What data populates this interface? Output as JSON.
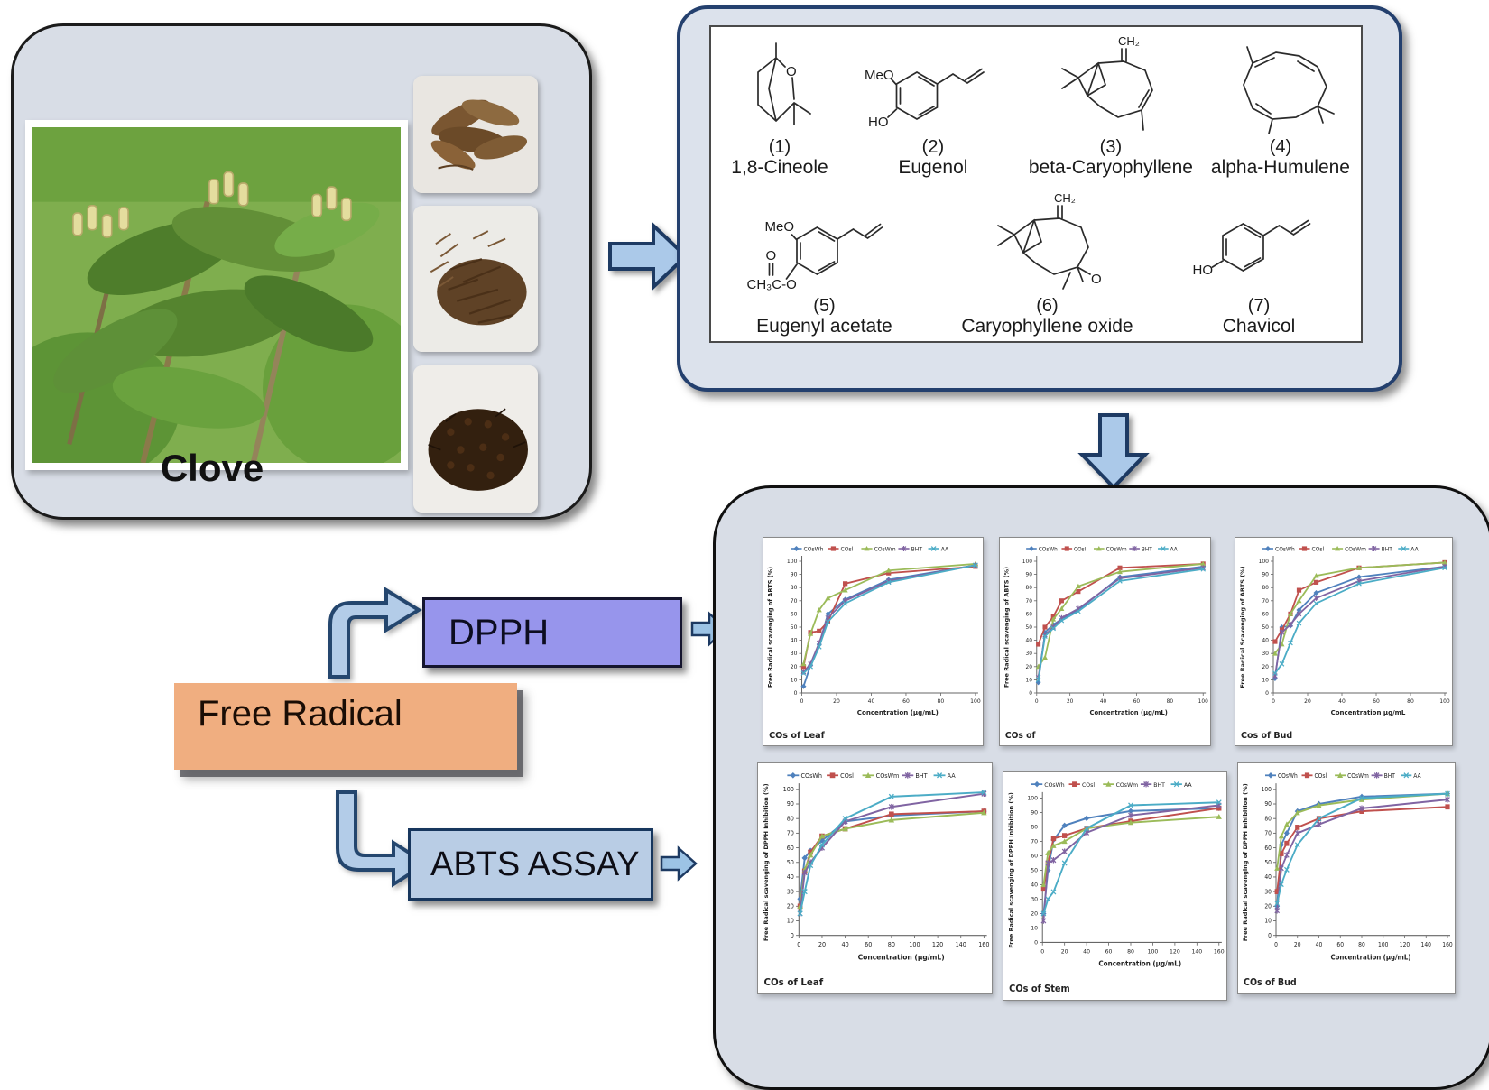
{
  "clove_panel": {
    "title": "Clove",
    "photos": [
      "clove-plant-photo",
      "dried-leaves-photo",
      "dried-stems-photo",
      "dried-buds-photo"
    ]
  },
  "compounds_panel": {
    "compounds": [
      {
        "num": "(1)",
        "name": "1,8-Cineole",
        "atoms": [
          "O"
        ]
      },
      {
        "num": "(2)",
        "name": "Eugenol",
        "atoms": [
          "MeO",
          "HO"
        ]
      },
      {
        "num": "(3)",
        "name": "beta-Caryophyllene",
        "atoms": [
          "CH₂"
        ]
      },
      {
        "num": "(4)",
        "name": "alpha-Humulene",
        "atoms": []
      },
      {
        "num": "(5)",
        "name": "Eugenyl acetate",
        "atoms": [
          "MeO",
          "O",
          "CH₃C-O"
        ]
      },
      {
        "num": "(6)",
        "name": "Caryophyllene oxide",
        "atoms": [
          "CH₂",
          "O"
        ]
      },
      {
        "num": "(7)",
        "name": "Chavicol",
        "atoms": [
          "HO"
        ]
      }
    ]
  },
  "flow": {
    "dpph_label": "DPPH",
    "free_radical_label": "Free Radical",
    "abts_label": "ABTS ASSAY"
  },
  "colors": {
    "panel_fill": "#d8dde6",
    "chem_border": "#24406e",
    "dpph_fill": "#9795ec",
    "free_radical_fill": "#f0ae80",
    "abts_fill": "#b9cde5",
    "block_arrow_fill": "#abc9e9",
    "block_arrow_stroke": "#24466e",
    "series_blue": "#4F81BD",
    "series_red": "#C0504D",
    "series_green": "#9BBB59",
    "series_purple": "#8064A2",
    "series_cyan": "#4BACC6"
  },
  "chart_data": [
    {
      "type": "line",
      "caption": "COs of Leaf",
      "xlabel": "Concentration (µg/mL)",
      "ylabel": "Free Radical scavenging of ABTS (%)",
      "xlim": [
        0,
        100
      ],
      "ylim": [
        0,
        100
      ],
      "xticks": [
        0,
        20,
        40,
        60,
        80,
        100
      ],
      "yticks": [
        0,
        10,
        20,
        30,
        40,
        50,
        60,
        70,
        80,
        90,
        100
      ],
      "x": [
        1,
        5,
        10,
        15,
        25,
        50,
        100
      ],
      "series": [
        {
          "name": "COsWh",
          "marker": "diamond",
          "color": "#4F81BD",
          "values": [
            5,
            21,
            37,
            60,
            71,
            86,
            97
          ]
        },
        {
          "name": "COsl",
          "marker": "square",
          "color": "#C0504D",
          "values": [
            20,
            46,
            47,
            54,
            83,
            91,
            96
          ]
        },
        {
          "name": "COsWm",
          "marker": "triangle",
          "color": "#9BBB59",
          "values": [
            22,
            45,
            63,
            72,
            78,
            93,
            98
          ]
        },
        {
          "name": "BHT",
          "marker": "star",
          "color": "#8064A2",
          "values": [
            16,
            22,
            38,
            57,
            70,
            85,
            97
          ]
        },
        {
          "name": "AA",
          "marker": "x",
          "color": "#4BACC6",
          "values": [
            15,
            20,
            35,
            54,
            68,
            84,
            97
          ]
        }
      ]
    },
    {
      "type": "line",
      "caption": "COs of",
      "xlabel": "Concentration (µg/mL)",
      "ylabel": "Free Radical scavenging of ABTS (%)",
      "xlim": [
        0,
        100
      ],
      "ylim": [
        0,
        100
      ],
      "xticks": [
        0,
        20,
        40,
        60,
        80,
        100
      ],
      "yticks": [
        0,
        10,
        20,
        30,
        40,
        50,
        60,
        70,
        80,
        90,
        100
      ],
      "x": [
        1,
        5,
        10,
        15,
        25,
        50,
        100
      ],
      "series": [
        {
          "name": "COsWh",
          "marker": "diamond",
          "color": "#4F81BD",
          "values": [
            8,
            46,
            52,
            56,
            63,
            88,
            96
          ]
        },
        {
          "name": "COsl",
          "marker": "square",
          "color": "#C0504D",
          "values": [
            37,
            50,
            58,
            70,
            77,
            95,
            98
          ]
        },
        {
          "name": "COsWm",
          "marker": "triangle",
          "color": "#9BBB59",
          "values": [
            20,
            27,
            56,
            64,
            81,
            92,
            98
          ]
        },
        {
          "name": "BHT",
          "marker": "star",
          "color": "#8064A2",
          "values": [
            12,
            44,
            50,
            57,
            64,
            87,
            95
          ]
        },
        {
          "name": "AA",
          "marker": "x",
          "color": "#4BACC6",
          "values": [
            10,
            43,
            49,
            55,
            62,
            85,
            94
          ]
        }
      ]
    },
    {
      "type": "line",
      "caption": "Cos of Bud",
      "xlabel": "Concentration µg/mL",
      "ylabel": "Free Radical Scavenging of ABTS (%)",
      "xlim": [
        0,
        100
      ],
      "ylim": [
        0,
        100
      ],
      "xticks": [
        0,
        20,
        40,
        60,
        80,
        100
      ],
      "yticks": [
        0,
        10,
        20,
        30,
        40,
        50,
        60,
        70,
        80,
        90,
        100
      ],
      "x": [
        1,
        5,
        10,
        15,
        25,
        50,
        100
      ],
      "series": [
        {
          "name": "COsWh",
          "marker": "diamond",
          "color": "#4F81BD",
          "values": [
            11,
            50,
            51,
            63,
            76,
            88,
            96
          ]
        },
        {
          "name": "COsl",
          "marker": "square",
          "color": "#C0504D",
          "values": [
            39,
            48,
            60,
            78,
            84,
            95,
            99
          ]
        },
        {
          "name": "COsWm",
          "marker": "triangle",
          "color": "#9BBB59",
          "values": [
            30,
            37,
            60,
            70,
            89,
            95,
            99
          ]
        },
        {
          "name": "BHT",
          "marker": "star",
          "color": "#8064A2",
          "values": [
            13,
            46,
            52,
            60,
            72,
            85,
            96
          ]
        },
        {
          "name": "AA",
          "marker": "x",
          "color": "#4BACC6",
          "values": [
            15,
            22,
            38,
            53,
            68,
            83,
            95
          ]
        }
      ]
    },
    {
      "type": "line",
      "caption": "COs of Leaf",
      "xlabel": "Concentration (µg/mL)",
      "ylabel": "Free Radical scavenging of DPPH Inhibition (%)",
      "xlim": [
        0,
        160
      ],
      "ylim": [
        0,
        100
      ],
      "xticks": [
        0,
        20,
        40,
        60,
        80,
        100,
        120,
        140,
        160
      ],
      "yticks": [
        0,
        10,
        20,
        30,
        40,
        50,
        60,
        70,
        80,
        90,
        100
      ],
      "x": [
        1,
        5,
        10,
        20,
        40,
        80,
        160
      ],
      "series": [
        {
          "name": "COsWh",
          "marker": "diamond",
          "color": "#4F81BD",
          "values": [
            25,
            53,
            58,
            65,
            78,
            82,
            85
          ]
        },
        {
          "name": "COsl",
          "marker": "square",
          "color": "#C0504D",
          "values": [
            20,
            44,
            57,
            68,
            73,
            83,
            85
          ]
        },
        {
          "name": "COsWm",
          "marker": "triangle",
          "color": "#9BBB59",
          "values": [
            20,
            45,
            55,
            68,
            73,
            79,
            84
          ]
        },
        {
          "name": "BHT",
          "marker": "star",
          "color": "#8064A2",
          "values": [
            15,
            43,
            50,
            60,
            78,
            88,
            97
          ]
        },
        {
          "name": "AA",
          "marker": "x",
          "color": "#4BACC6",
          "values": [
            15,
            30,
            48,
            62,
            80,
            95,
            98
          ]
        }
      ]
    },
    {
      "type": "line",
      "caption": "COs of Stem",
      "xlabel": "Concentration (µg/mL)",
      "ylabel": "Free Radical scavenging of DPPH Inhibition (%)",
      "xlim": [
        0,
        160
      ],
      "ylim": [
        0,
        100
      ],
      "xticks": [
        0,
        20,
        40,
        60,
        80,
        100,
        120,
        140,
        160
      ],
      "yticks": [
        0,
        10,
        20,
        30,
        40,
        50,
        60,
        70,
        80,
        90,
        100
      ],
      "x": [
        1,
        5,
        10,
        20,
        40,
        80,
        160
      ],
      "series": [
        {
          "name": "COsWh",
          "marker": "diamond",
          "color": "#4F81BD",
          "values": [
            20,
            50,
            71,
            81,
            86,
            91,
            93
          ]
        },
        {
          "name": "COsl",
          "marker": "square",
          "color": "#C0504D",
          "values": [
            37,
            55,
            72,
            74,
            79,
            84,
            93
          ]
        },
        {
          "name": "COsWm",
          "marker": "triangle",
          "color": "#9BBB59",
          "values": [
            40,
            62,
            67,
            70,
            79,
            83,
            87
          ]
        },
        {
          "name": "BHT",
          "marker": "star",
          "color": "#8064A2",
          "values": [
            15,
            55,
            57,
            63,
            76,
            88,
            95
          ]
        },
        {
          "name": "AA",
          "marker": "x",
          "color": "#4BACC6",
          "values": [
            20,
            30,
            35,
            55,
            79,
            95,
            97
          ]
        }
      ]
    },
    {
      "type": "line",
      "caption": "COs of Bud",
      "xlabel": "Concentration (µg/mL)",
      "ylabel": "Free Radical scavenging of DPPH Inhibition (%)",
      "xlim": [
        0,
        160
      ],
      "ylim": [
        0,
        100
      ],
      "xticks": [
        0,
        20,
        40,
        60,
        80,
        100,
        120,
        140,
        160
      ],
      "yticks": [
        0,
        10,
        20,
        30,
        40,
        50,
        60,
        70,
        80,
        90,
        100
      ],
      "x": [
        1,
        5,
        10,
        20,
        40,
        80,
        160
      ],
      "series": [
        {
          "name": "COsWh",
          "marker": "diamond",
          "color": "#4F81BD",
          "values": [
            20,
            62,
            70,
            85,
            90,
            95,
            97
          ]
        },
        {
          "name": "COsl",
          "marker": "square",
          "color": "#C0504D",
          "values": [
            30,
            56,
            63,
            74,
            80,
            85,
            88
          ]
        },
        {
          "name": "COsWm",
          "marker": "triangle",
          "color": "#9BBB59",
          "values": [
            46,
            68,
            76,
            84,
            89,
            93,
            97
          ]
        },
        {
          "name": "BHT",
          "marker": "star",
          "color": "#8064A2",
          "values": [
            17,
            46,
            55,
            70,
            76,
            87,
            93
          ]
        },
        {
          "name": "AA",
          "marker": "x",
          "color": "#4BACC6",
          "values": [
            22,
            35,
            45,
            62,
            80,
            94,
            97
          ]
        }
      ]
    }
  ]
}
